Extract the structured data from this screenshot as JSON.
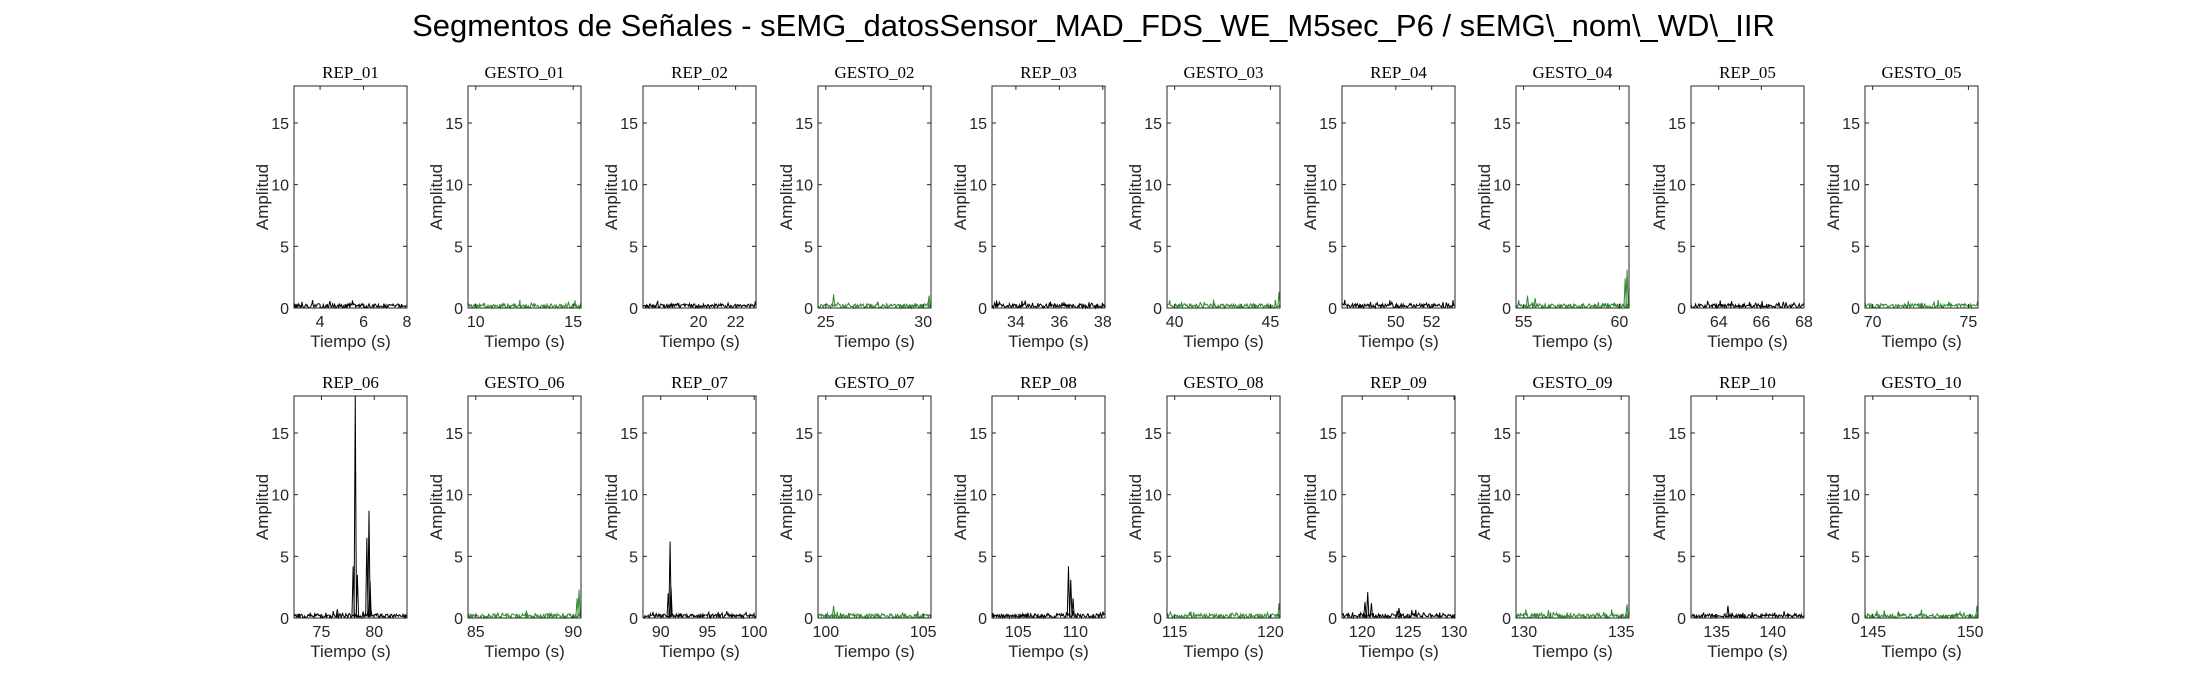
{
  "figure": {
    "title": "Segmentos de Señales - sEMG_datosSensor_MAD_FDS_WE_M5sec_P6 / sEMG\\_nom\\_WD\\_IIR"
  },
  "colors": {
    "rep": "#000000",
    "gesto": "#2e8b2e",
    "axes": "#262626",
    "background": "#ffffff"
  },
  "chart_data": [
    {
      "type": "line",
      "title": "REP_01",
      "xlabel": "Tiempo (s)",
      "ylabel": "Amplitud",
      "xlim": [
        2.8,
        8.0
      ],
      "ylim": [
        0,
        18
      ],
      "xticks": [
        4,
        6,
        8
      ],
      "yticks": [
        0,
        5,
        10,
        15
      ],
      "color": "#000000",
      "spikes": []
    },
    {
      "type": "line",
      "title": "GESTO_01",
      "xlabel": "Tiempo (s)",
      "ylabel": "Amplitud",
      "xlim": [
        9.6,
        15.4
      ],
      "ylim": [
        0,
        18
      ],
      "xticks": [
        10,
        15
      ],
      "yticks": [
        0,
        5,
        10,
        15
      ],
      "color": "#2e8b2e",
      "spikes": []
    },
    {
      "type": "line",
      "title": "REP_02",
      "xlabel": "Tiempo (s)",
      "ylabel": "Amplitud",
      "xlim": [
        17.0,
        23.1
      ],
      "ylim": [
        0,
        18
      ],
      "xticks": [
        20,
        22
      ],
      "yticks": [
        0,
        5,
        10,
        15
      ],
      "color": "#000000",
      "spikes": []
    },
    {
      "type": "line",
      "title": "GESTO_02",
      "xlabel": "Tiempo (s)",
      "ylabel": "Amplitud",
      "xlim": [
        24.6,
        30.4
      ],
      "ylim": [
        0,
        18
      ],
      "xticks": [
        25,
        30
      ],
      "yticks": [
        0,
        5,
        10,
        15
      ],
      "color": "#2e8b2e",
      "spikes": [
        [
          25.4,
          1.1
        ],
        [
          30.3,
          1.0
        ]
      ]
    },
    {
      "type": "line",
      "title": "REP_03",
      "xlabel": "Tiempo (s)",
      "ylabel": "Amplitud",
      "xlim": [
        32.9,
        38.1
      ],
      "ylim": [
        0,
        18
      ],
      "xticks": [
        34,
        36,
        38
      ],
      "yticks": [
        0,
        5,
        10,
        15
      ],
      "color": "#000000",
      "spikes": []
    },
    {
      "type": "line",
      "title": "GESTO_03",
      "xlabel": "Tiempo (s)",
      "ylabel": "Amplitud",
      "xlim": [
        39.6,
        45.5
      ],
      "ylim": [
        0,
        18
      ],
      "xticks": [
        40,
        45
      ],
      "yticks": [
        0,
        5,
        10,
        15
      ],
      "color": "#2e8b2e",
      "spikes": [
        [
          45.45,
          1.3
        ]
      ]
    },
    {
      "type": "line",
      "title": "REP_04",
      "xlabel": "Tiempo (s)",
      "ylabel": "Amplitud",
      "xlim": [
        47.0,
        53.3
      ],
      "ylim": [
        0,
        18
      ],
      "xticks": [
        50,
        52
      ],
      "yticks": [
        0,
        5,
        10,
        15
      ],
      "color": "#000000",
      "spikes": []
    },
    {
      "type": "line",
      "title": "GESTO_04",
      "xlabel": "Tiempo (s)",
      "ylabel": "Amplitud",
      "xlim": [
        54.6,
        60.5
      ],
      "ylim": [
        0,
        18
      ],
      "xticks": [
        55,
        60
      ],
      "yticks": [
        0,
        5,
        10,
        15
      ],
      "color": "#2e8b2e",
      "spikes": [
        [
          55.2,
          1.0
        ],
        [
          55.6,
          0.8
        ],
        [
          60.4,
          3.1
        ],
        [
          60.3,
          2.4
        ]
      ]
    },
    {
      "type": "line",
      "title": "REP_05",
      "xlabel": "Tiempo (s)",
      "ylabel": "Amplitud",
      "xlim": [
        62.7,
        68.0
      ],
      "ylim": [
        0,
        18
      ],
      "xticks": [
        64,
        66,
        68
      ],
      "yticks": [
        0,
        5,
        10,
        15
      ],
      "color": "#000000",
      "spikes": []
    },
    {
      "type": "line",
      "title": "GESTO_05",
      "xlabel": "Tiempo (s)",
      "ylabel": "Amplitud",
      "xlim": [
        69.6,
        75.5
      ],
      "ylim": [
        0,
        18
      ],
      "xticks": [
        70,
        75
      ],
      "yticks": [
        0,
        5,
        10,
        15
      ],
      "color": "#2e8b2e",
      "spikes": []
    },
    {
      "type": "line",
      "title": "REP_06",
      "xlabel": "Tiempo (s)",
      "ylabel": "Amplitud",
      "xlim": [
        72.4,
        83.1
      ],
      "ylim": [
        0,
        18
      ],
      "xticks": [
        75,
        80
      ],
      "yticks": [
        0,
        5,
        10,
        15
      ],
      "color": "#000000",
      "spikes": [
        [
          76.5,
          0.7
        ],
        [
          78.0,
          4.2
        ],
        [
          78.2,
          18.0
        ],
        [
          78.4,
          3.5
        ],
        [
          79.3,
          6.5
        ],
        [
          79.5,
          8.7
        ],
        [
          79.6,
          3.0
        ]
      ]
    },
    {
      "type": "line",
      "title": "GESTO_06",
      "xlabel": "Tiempo (s)",
      "ylabel": "Amplitud",
      "xlim": [
        84.6,
        90.4
      ],
      "ylim": [
        0,
        18
      ],
      "xticks": [
        85,
        90
      ],
      "yticks": [
        0,
        5,
        10,
        15
      ],
      "color": "#2e8b2e",
      "spikes": [
        [
          90.3,
          2.3
        ],
        [
          90.2,
          1.6
        ]
      ]
    },
    {
      "type": "line",
      "title": "REP_07",
      "xlabel": "Tiempo (s)",
      "ylabel": "Amplitud",
      "xlim": [
        88.1,
        100.2
      ],
      "ylim": [
        0,
        18
      ],
      "xticks": [
        90,
        95,
        100
      ],
      "yticks": [
        0,
        5,
        10,
        15
      ],
      "color": "#000000",
      "spikes": [
        [
          90.8,
          2.0
        ],
        [
          91.0,
          6.2
        ],
        [
          91.1,
          2.5
        ]
      ]
    },
    {
      "type": "line",
      "title": "GESTO_07",
      "xlabel": "Tiempo (s)",
      "ylabel": "Amplitud",
      "xlim": [
        99.6,
        105.4
      ],
      "ylim": [
        0,
        18
      ],
      "xticks": [
        100,
        105
      ],
      "yticks": [
        0,
        5,
        10,
        15
      ],
      "color": "#2e8b2e",
      "spikes": [
        [
          100.4,
          1.0
        ]
      ]
    },
    {
      "type": "line",
      "title": "REP_08",
      "xlabel": "Tiempo (s)",
      "ylabel": "Amplitud",
      "xlim": [
        102.7,
        112.6
      ],
      "ylim": [
        0,
        18
      ],
      "xticks": [
        105,
        110
      ],
      "yticks": [
        0,
        5,
        10,
        15
      ],
      "color": "#000000",
      "spikes": [
        [
          109.4,
          4.2
        ],
        [
          109.6,
          3.1
        ],
        [
          109.8,
          1.6
        ]
      ]
    },
    {
      "type": "line",
      "title": "GESTO_08",
      "xlabel": "Tiempo (s)",
      "ylabel": "Amplitud",
      "xlim": [
        114.6,
        120.5
      ],
      "ylim": [
        0,
        18
      ],
      "xticks": [
        115,
        120
      ],
      "yticks": [
        0,
        5,
        10,
        15
      ],
      "color": "#2e8b2e",
      "spikes": [
        [
          120.45,
          1.2
        ]
      ]
    },
    {
      "type": "line",
      "title": "REP_09",
      "xlabel": "Tiempo (s)",
      "ylabel": "Amplitud",
      "xlim": [
        117.8,
        130.1
      ],
      "ylim": [
        0,
        18
      ],
      "xticks": [
        120,
        125,
        130
      ],
      "yticks": [
        0,
        5,
        10,
        15
      ],
      "color": "#000000",
      "spikes": [
        [
          120.3,
          1.3
        ],
        [
          120.6,
          2.1
        ],
        [
          121.0,
          1.2
        ],
        [
          124.0,
          0.8
        ]
      ]
    },
    {
      "type": "line",
      "title": "GESTO_09",
      "xlabel": "Tiempo (s)",
      "ylabel": "Amplitud",
      "xlim": [
        129.6,
        135.4
      ],
      "ylim": [
        0,
        18
      ],
      "xticks": [
        130,
        135
      ],
      "yticks": [
        0,
        5,
        10,
        15
      ],
      "color": "#2e8b2e",
      "spikes": [
        [
          135.3,
          1.1
        ]
      ]
    },
    {
      "type": "line",
      "title": "REP_10",
      "xlabel": "Tiempo (s)",
      "ylabel": "Amplitud",
      "xlim": [
        132.7,
        142.8
      ],
      "ylim": [
        0,
        18
      ],
      "xticks": [
        135,
        140
      ],
      "yticks": [
        0,
        5,
        10,
        15
      ],
      "color": "#000000",
      "spikes": [
        [
          136.0,
          1.0
        ]
      ]
    },
    {
      "type": "line",
      "title": "GESTO_10",
      "xlabel": "Tiempo (s)",
      "ylabel": "Amplitud",
      "xlim": [
        144.6,
        150.4
      ],
      "ylim": [
        0,
        18
      ],
      "xticks": [
        145,
        150
      ],
      "yticks": [
        0,
        5,
        10,
        15
      ],
      "color": "#2e8b2e",
      "spikes": [
        [
          150.35,
          1.0
        ]
      ]
    }
  ]
}
